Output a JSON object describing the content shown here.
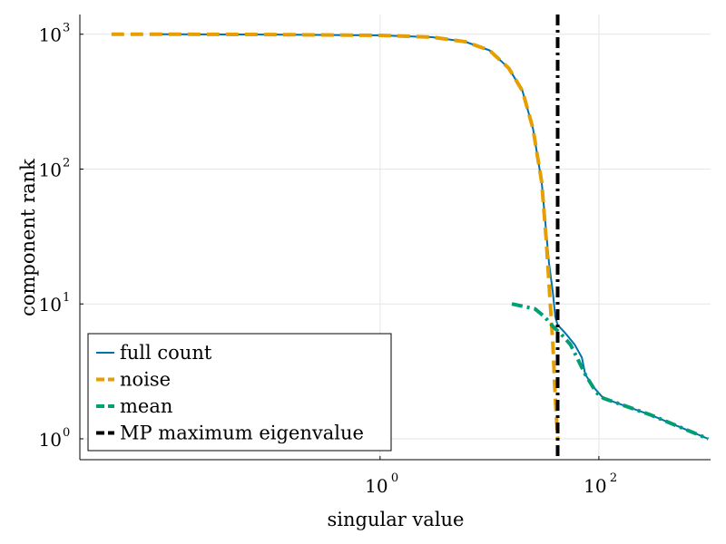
{
  "chart_data": {
    "type": "line",
    "title": "",
    "xlabel": "singular value",
    "ylabel": "component rank",
    "xscale": "log",
    "yscale": "log",
    "xlim": [
      0.0018,
      1050
    ],
    "ylim": [
      0.7,
      1400
    ],
    "grid": true,
    "legend_position": "bottom-left",
    "x_ticks": [
      {
        "value": 1,
        "base": "10",
        "exp": "0"
      },
      {
        "value": 100,
        "base": "10",
        "exp": "2"
      }
    ],
    "y_ticks": [
      {
        "value": 1,
        "base": "10",
        "exp": "0"
      },
      {
        "value": 10,
        "base": "10",
        "exp": "1"
      },
      {
        "value": 100,
        "base": "10",
        "exp": "2"
      },
      {
        "value": 1000,
        "base": "10",
        "exp": "3"
      }
    ],
    "series": [
      {
        "name": "full count",
        "color": "#0072b2",
        "style": "solid",
        "points": [
          [
            0.01,
            1000
          ],
          [
            0.1,
            995
          ],
          [
            1,
            980
          ],
          [
            3,
            950
          ],
          [
            6,
            880
          ],
          [
            10,
            760
          ],
          [
            15,
            560
          ],
          [
            20,
            380
          ],
          [
            25,
            200
          ],
          [
            30,
            80
          ],
          [
            35,
            20
          ],
          [
            38,
            12
          ],
          [
            40,
            8
          ],
          [
            42,
            7
          ],
          [
            50,
            6
          ],
          [
            60,
            5
          ],
          [
            70,
            4
          ],
          [
            75,
            3
          ],
          [
            90,
            2.4
          ],
          [
            110,
            2.0
          ],
          [
            300,
            1.5
          ],
          [
            1000,
            1.0
          ]
        ]
      },
      {
        "name": "noise",
        "color": "#e69f00",
        "style": "dashed",
        "points": [
          [
            0.0035,
            1000
          ],
          [
            0.01,
            1000
          ],
          [
            0.1,
            995
          ],
          [
            1,
            980
          ],
          [
            3,
            950
          ],
          [
            6,
            880
          ],
          [
            10,
            760
          ],
          [
            15,
            560
          ],
          [
            20,
            380
          ],
          [
            25,
            200
          ],
          [
            30,
            80
          ],
          [
            33,
            30
          ],
          [
            36,
            10
          ],
          [
            38,
            5
          ],
          [
            40,
            2
          ],
          [
            42,
            1
          ]
        ]
      },
      {
        "name": "mean",
        "color": "#009e73",
        "style": "dashdot",
        "points": [
          [
            16,
            10
          ],
          [
            26,
            9.2
          ],
          [
            32,
            8
          ],
          [
            38,
            6.8
          ],
          [
            45,
            6
          ],
          [
            55,
            5
          ],
          [
            65,
            3.8
          ],
          [
            75,
            3
          ],
          [
            95,
            2.2
          ],
          [
            110,
            2.0
          ],
          [
            300,
            1.5
          ],
          [
            1000,
            1.0
          ]
        ]
      },
      {
        "name": "MP maximum eigenvalue",
        "color": "#000000",
        "style": "dashdot",
        "x_const": 42
      }
    ]
  }
}
